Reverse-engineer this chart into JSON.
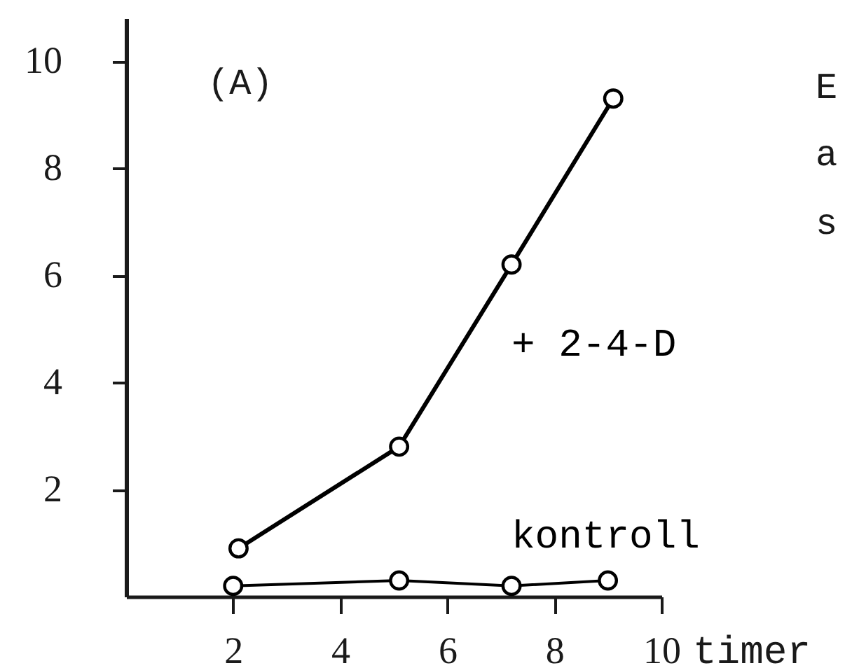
{
  "chart_data": {
    "type": "line",
    "xlabel": "timer",
    "xlim": [
      0,
      10
    ],
    "xticks": [
      2,
      4,
      6,
      8,
      10
    ],
    "ylim": [
      0,
      10.8
    ],
    "yticks": [
      2,
      4,
      6,
      8,
      10
    ],
    "marker": "circle",
    "line_style": "solid",
    "annotations": [
      "(A)",
      "E",
      "a",
      "s"
    ],
    "series": [
      {
        "name": "+ 2-4-D",
        "color": "#000000",
        "x": [
          2.1,
          5.1,
          7.2,
          9.1
        ],
        "values": [
          0.9,
          2.8,
          6.2,
          9.3
        ]
      },
      {
        "name": "kontroll",
        "color": "#000000",
        "x": [
          2.0,
          5.1,
          7.2,
          9.0
        ],
        "values": [
          0.2,
          0.3,
          0.2,
          0.3
        ]
      }
    ]
  }
}
